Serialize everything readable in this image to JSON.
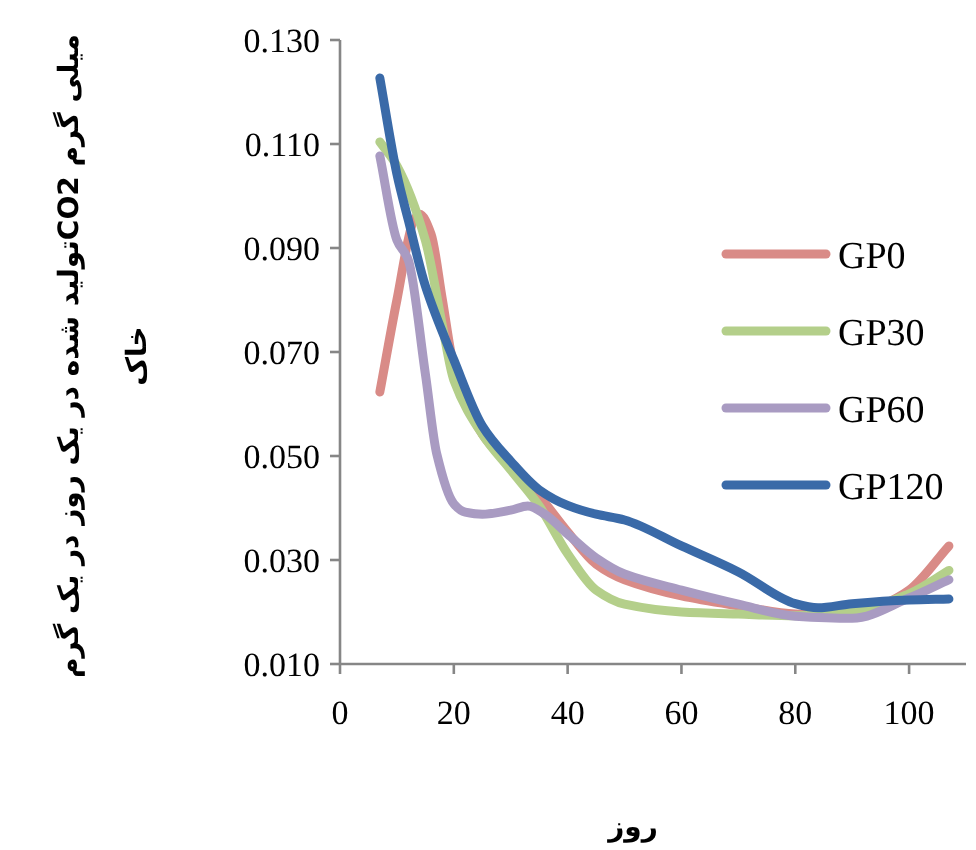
{
  "chart_data": {
    "type": "line",
    "xlabel": "روز",
    "ylabel": "میلی گرم CO2تولید شده در یک روز در یک گرم خاک",
    "xlim": [
      0,
      110
    ],
    "xticks": [
      0,
      20,
      40,
      60,
      80,
      100
    ],
    "ylim": [
      0.01,
      0.13
    ],
    "yticks": [
      {
        "value": 0.01,
        "label": "0.010"
      },
      {
        "value": 0.03,
        "label": "0.030"
      },
      {
        "value": 0.05,
        "label": "0.050"
      },
      {
        "value": 0.07,
        "label": "0.070"
      },
      {
        "value": 0.09,
        "label": "0.090"
      },
      {
        "value": 0.11,
        "label": "0.110"
      },
      {
        "value": 0.13,
        "label": "0.130"
      }
    ],
    "grid": false,
    "legend": "right",
    "marker": "none",
    "line_style": "solid",
    "series": [
      {
        "name": "GP0",
        "color": "#d98b87",
        "x": [
          7,
          10,
          13,
          14,
          16,
          18,
          20,
          25,
          30,
          35,
          40,
          45,
          50,
          60,
          70,
          80,
          90,
          95,
          100,
          107
        ],
        "values": [
          0.0623,
          0.08,
          0.0954,
          0.0965,
          0.0927,
          0.08,
          0.0673,
          0.0542,
          0.048,
          0.0423,
          0.0354,
          0.0292,
          0.0262,
          0.0231,
          0.0212,
          0.0196,
          0.0193,
          0.0212,
          0.0242,
          0.0327
        ]
      },
      {
        "name": "GP30",
        "color": "#b4cf8a",
        "x": [
          7,
          10,
          15,
          18,
          20,
          25,
          30,
          35,
          40,
          45,
          50,
          60,
          70,
          80,
          90,
          100,
          107
        ],
        "values": [
          0.1104,
          0.1058,
          0.0915,
          0.075,
          0.0646,
          0.0542,
          0.0473,
          0.0404,
          0.0312,
          0.0242,
          0.0215,
          0.02,
          0.0196,
          0.0193,
          0.02,
          0.0235,
          0.028
        ]
      },
      {
        "name": "GP60",
        "color": "#a99bc2",
        "x": [
          7,
          10,
          12,
          15,
          17,
          20,
          22,
          25,
          30,
          33,
          36,
          40,
          45,
          50,
          60,
          70,
          80,
          90,
          100,
          107
        ],
        "values": [
          0.1077,
          0.0915,
          0.0877,
          0.0658,
          0.0504,
          0.0408,
          0.0392,
          0.0388,
          0.0396,
          0.0404,
          0.0388,
          0.035,
          0.0304,
          0.0273,
          0.0242,
          0.0215,
          0.0192,
          0.0188,
          0.0227,
          0.0262
        ]
      },
      {
        "name": "GP120",
        "color": "#3a6aa8",
        "x": [
          7,
          10,
          12,
          15,
          20,
          25,
          30,
          35,
          40,
          45,
          50,
          60,
          70,
          80,
          84,
          90,
          100,
          107
        ],
        "values": [
          0.1227,
          0.1042,
          0.0954,
          0.0827,
          0.0685,
          0.0558,
          0.049,
          0.0435,
          0.0405,
          0.0388,
          0.0377,
          0.0327,
          0.0277,
          0.0216,
          0.0208,
          0.0216,
          0.0223,
          0.0225
        ]
      }
    ]
  }
}
